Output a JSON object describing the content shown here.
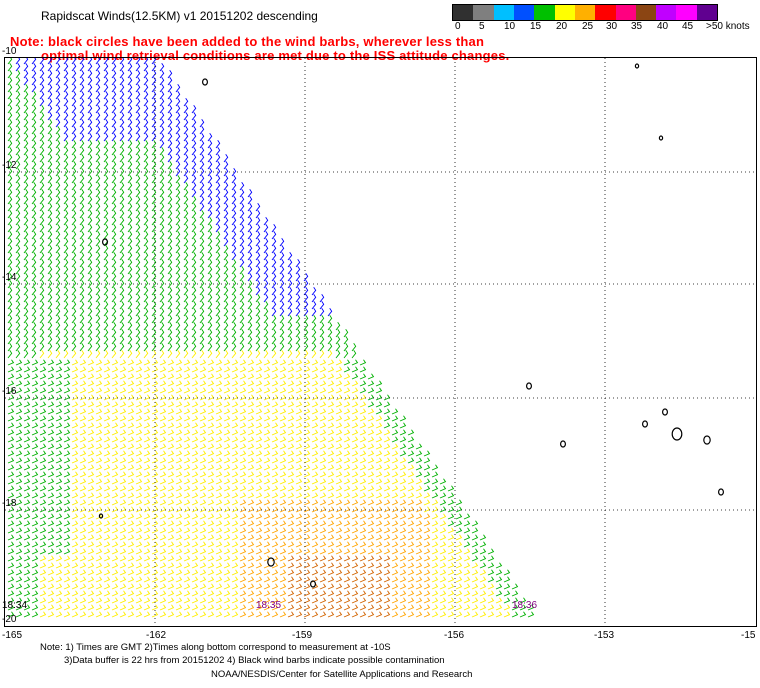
{
  "header": {
    "title": "Rapidscat Winds(12.5KM) v1 20151202 descending",
    "note_line1": "Note: black circles have been added to the wind barbs, wherever less than",
    "note_line2": "optimal wind retrieval conditions are met due to the ISS attitude changes."
  },
  "legend": {
    "colors": [
      "#303030",
      "#7f7f7f",
      "#00bfff",
      "#0050ff",
      "#00c000",
      "#ffff00",
      "#ffb000",
      "#ff0000",
      "#ff0080",
      "#8b4513",
      "#c000ff",
      "#ff00ff",
      "#600090"
    ],
    "labels": [
      "0",
      "5",
      "10",
      "15",
      "20",
      "25",
      "30",
      "35",
      "40",
      "45",
      ">50 knots"
    ],
    "units": "knots"
  },
  "map": {
    "lat_labels": [
      "-10",
      "-12",
      "-14",
      "-16",
      "-18",
      "-20"
    ],
    "lon_labels": [
      "-165",
      "-162",
      "-159",
      "-156",
      "-153",
      "-15"
    ],
    "time_labels": [
      {
        "text": "18:34",
        "color": "#000000"
      },
      {
        "text": "18:35",
        "color": "#800080"
      },
      {
        "text": "18:36",
        "color": "#800080"
      }
    ],
    "wind_colors": {
      "15": "#0000ff",
      "20": "#00b000",
      "25": "#ffee00",
      "30": "#ffa500",
      "35": "#d26400"
    }
  },
  "footer": {
    "line1": "Note: 1) Times are GMT 2)Times along bottom correspond to measurement at -10S",
    "line2": "3)Data buffer is 22 hrs from 20151202 4) Black wind barbs indicate possible contamination",
    "line3": "NOAA/NESDIS/Center for Satellite Applications and Research"
  }
}
